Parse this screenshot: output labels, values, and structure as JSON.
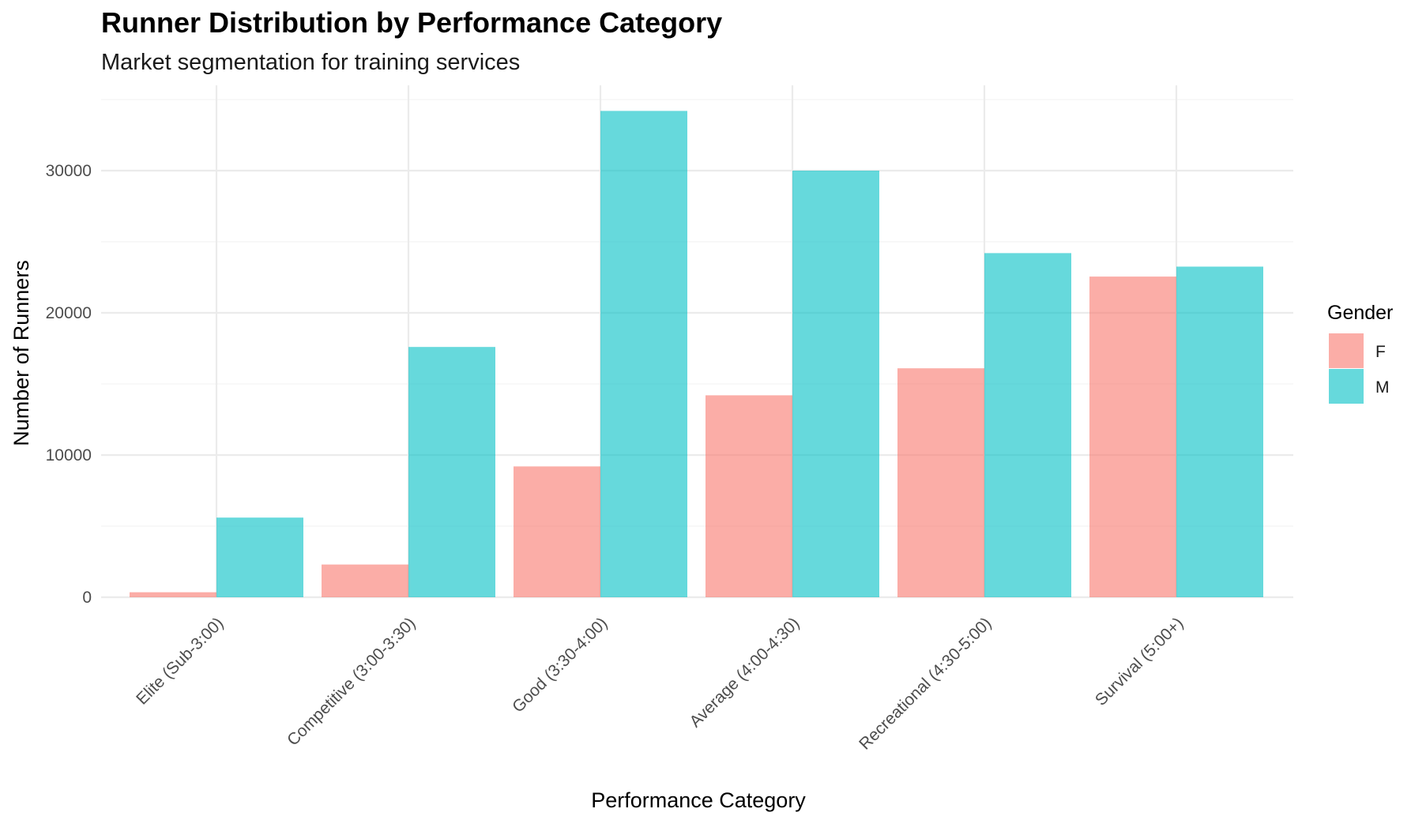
{
  "chart_data": {
    "type": "bar",
    "title": "Runner Distribution by Performance Category",
    "subtitle": "Market segmentation for training services",
    "xlabel": "Performance Category",
    "ylabel": "Number of Runners",
    "categories": [
      "Elite (Sub-3:00)",
      "Competitive (3:00-3:30)",
      "Good (3:30-4:00)",
      "Average (4:00-4:30)",
      "Recreational (4:30-5:00)",
      "Survival (5:00+)"
    ],
    "series": [
      {
        "name": "F",
        "color": "#F8766D",
        "values": [
          350,
          2300,
          9200,
          14200,
          16100,
          22550
        ]
      },
      {
        "name": "M",
        "color": "#00BFC4",
        "values": [
          5600,
          17600,
          34200,
          30000,
          24200,
          23250
        ]
      }
    ],
    "ylim": [
      0,
      35000
    ],
    "yticks": [
      0,
      10000,
      20000,
      30000
    ],
    "grid": true,
    "legend": {
      "title": "Gender",
      "placement": "right"
    },
    "bar_opacity": 0.6
  }
}
